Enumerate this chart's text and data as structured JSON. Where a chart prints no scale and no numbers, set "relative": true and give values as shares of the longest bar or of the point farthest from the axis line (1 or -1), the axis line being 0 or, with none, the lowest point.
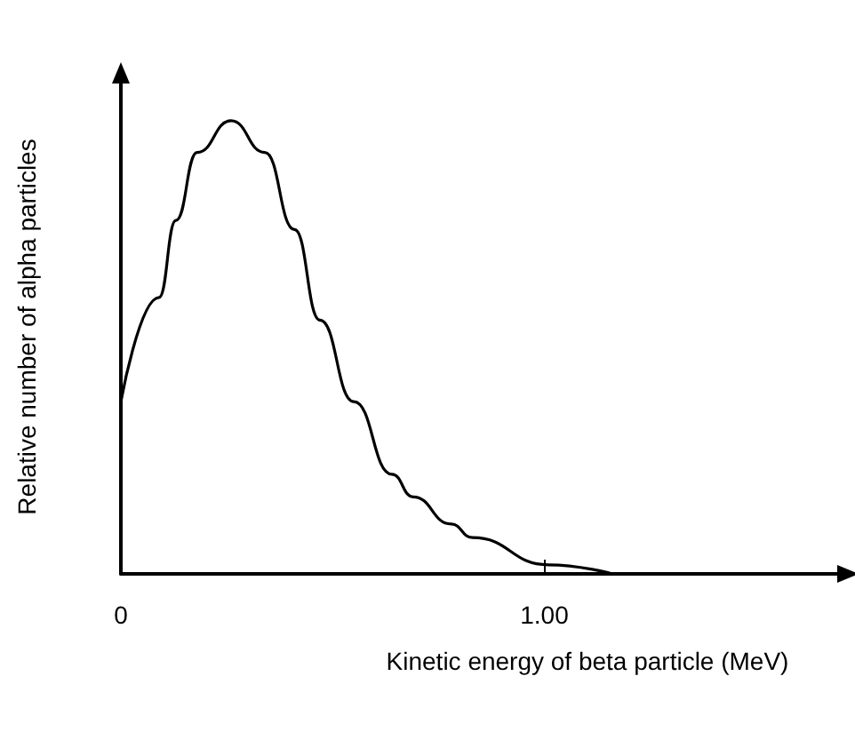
{
  "chart_data": {
    "type": "line",
    "relative": true,
    "xlabel": "Kinetic energy of beta particle (MeV)",
    "ylabel": "Relative number of alpha particles",
    "x": [
      0,
      0.09,
      0.13,
      0.18,
      0.26,
      0.34,
      0.41,
      0.47,
      0.55,
      0.64,
      0.69,
      0.78,
      0.83,
      1.01,
      1.16
    ],
    "series": [
      {
        "color": "#000000",
        "values": [
          0.38,
          0.61,
          0.78,
          0.93,
          1,
          0.93,
          0.76,
          0.56,
          0.38,
          0.22,
          0.17,
          0.11,
          0.08,
          0.02,
          0
        ]
      }
    ],
    "xlim": [
      0,
      1.7
    ],
    "xticks": [
      0,
      {
        "value": 1,
        "label": "1.00"
      }
    ],
    "grid": false,
    "marker": "none",
    "line_style": "solid"
  }
}
